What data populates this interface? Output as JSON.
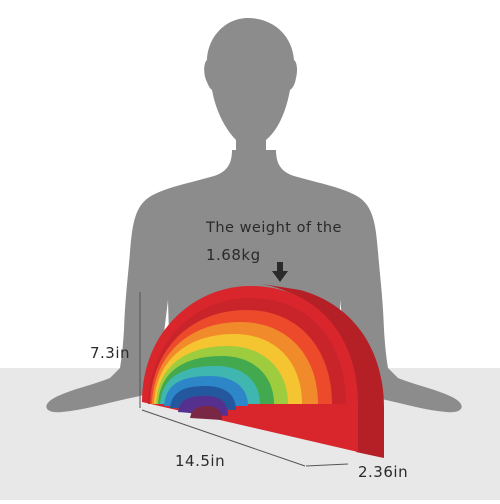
{
  "annotations": {
    "weight_line1": "The weight of the",
    "weight_line2": "1.68kg",
    "height": "7.3in",
    "length": "14.5in",
    "depth": "2.36in"
  },
  "colors": {
    "silhouette": "#8c8c8c",
    "floor": "#e6e6e6",
    "arches": [
      "#d8262c",
      "#ec4a2a",
      "#f18a2b",
      "#f5c431",
      "#9dcd3e",
      "#43a94e",
      "#3fb7b0",
      "#2d86c8",
      "#23589e",
      "#55308e",
      "#7a2745"
    ]
  },
  "icons": [
    "down-arrow-icon"
  ]
}
